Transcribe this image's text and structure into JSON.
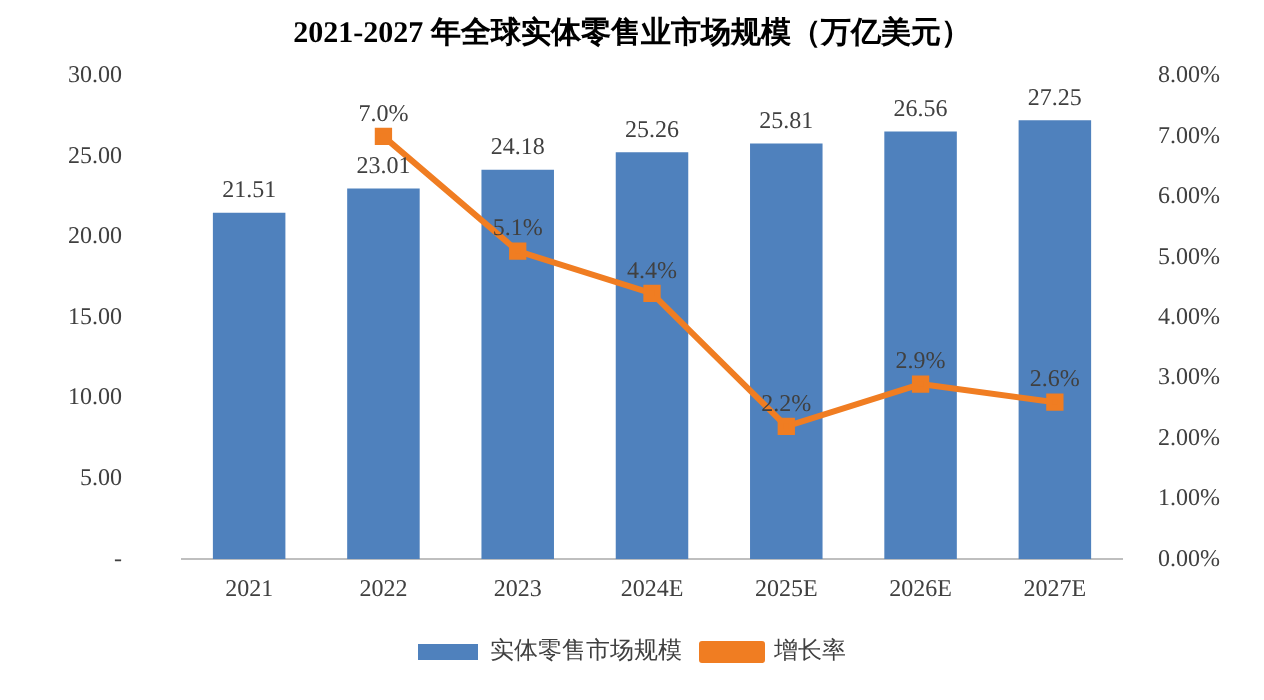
{
  "chart_data": {
    "type": "bar",
    "title": "2021-2027 年全球实体零售业市场规模（万亿美元）",
    "categories": [
      "2021",
      "2022",
      "2023",
      "2024E",
      "2025E",
      "2026E",
      "2027E"
    ],
    "series": [
      {
        "name": "实体零售市场规模",
        "color": "#4f81bd",
        "values": [
          21.51,
          23.01,
          24.18,
          25.26,
          25.81,
          26.56,
          27.25
        ],
        "value_labels": [
          "21.51",
          "23.01",
          "24.18",
          "25.26",
          "25.81",
          "26.56",
          "27.25"
        ]
      },
      {
        "name": "增长率",
        "type": "line",
        "axis": "y2",
        "color": "#f07d22",
        "marker": "square",
        "values": [
          null,
          7.0,
          5.1,
          4.4,
          2.2,
          2.9,
          2.6
        ],
        "value_labels": [
          null,
          "7.0%",
          "5.1%",
          "4.4%",
          "2.2%",
          "2.9%",
          "2.6%"
        ]
      }
    ],
    "ylim": [
      0,
      30
    ],
    "yticks": [
      {
        "value": 0,
        "label": "-"
      },
      {
        "value": 5,
        "label": "5.00"
      },
      {
        "value": 10,
        "label": "10.00"
      },
      {
        "value": 15,
        "label": "15.00"
      },
      {
        "value": 20,
        "label": "20.00"
      },
      {
        "value": 25,
        "label": "25.00"
      },
      {
        "value": 30,
        "label": "30.00"
      }
    ],
    "y2lim": [
      0,
      8
    ],
    "y2ticks": [
      {
        "value": 0,
        "label": "0.00%"
      },
      {
        "value": 1,
        "label": "1.00%"
      },
      {
        "value": 2,
        "label": "2.00%"
      },
      {
        "value": 3,
        "label": "3.00%"
      },
      {
        "value": 4,
        "label": "4.00%"
      },
      {
        "value": 5,
        "label": "5.00%"
      },
      {
        "value": 6,
        "label": "6.00%"
      },
      {
        "value": 7,
        "label": "7.00%"
      },
      {
        "value": 8,
        "label": "8.00%"
      }
    ],
    "grid": false,
    "legend": "bottom"
  }
}
